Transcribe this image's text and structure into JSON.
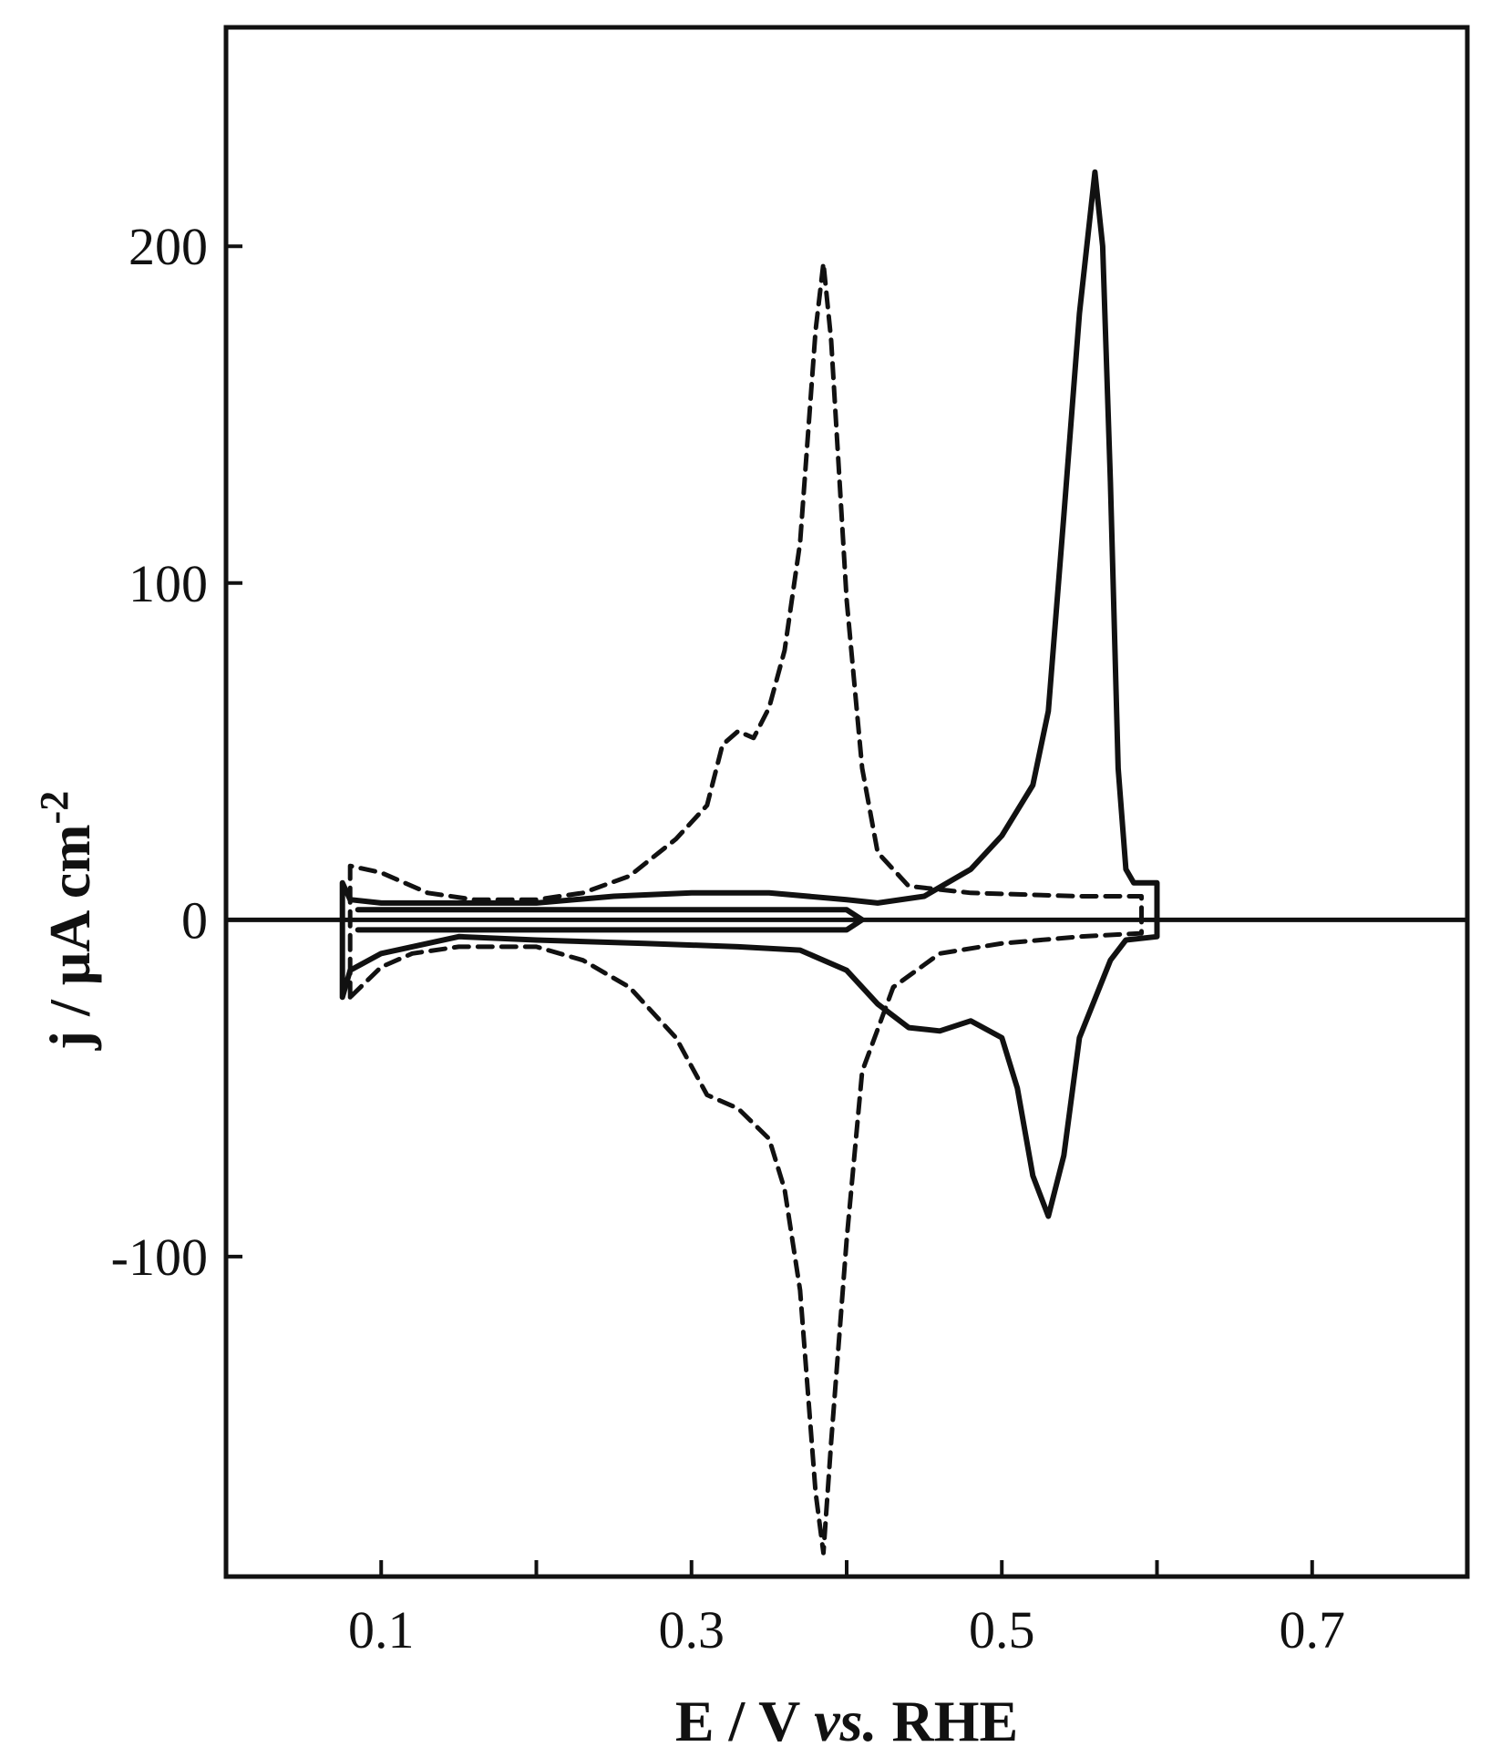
{
  "chart_data": {
    "type": "line",
    "xlabel": {
      "prefix": "E / V ",
      "italic": "vs.",
      "suffix": " RHE"
    },
    "ylabel": {
      "base": "j / μA cm",
      "sup": "-2"
    },
    "xlim": [
      0.0,
      0.8
    ],
    "ylim": [
      -195,
      265
    ],
    "x_ticks": [
      0.1,
      0.2,
      0.3,
      0.4,
      0.5,
      0.6,
      0.7
    ],
    "x_tick_labels": [
      {
        "value": 0.1,
        "label": "0.1"
      },
      {
        "value": 0.3,
        "label": "0.3"
      },
      {
        "value": 0.5,
        "label": "0.5"
      },
      {
        "value": 0.7,
        "label": "0.7"
      }
    ],
    "y_ticks": [
      -100,
      0,
      100,
      200
    ],
    "y_tick_labels": [
      {
        "value": 200,
        "label": "200"
      },
      {
        "value": 100,
        "label": "100"
      },
      {
        "value": 0,
        "label": "0"
      },
      {
        "value": -100,
        "label": "-100"
      }
    ],
    "zero_line": true,
    "grid": false,
    "legend": "none",
    "series": [
      {
        "style": "dashed",
        "color": "#111111",
        "points": [
          [
            0.08,
            -23
          ],
          [
            0.08,
            16
          ],
          [
            0.1,
            14
          ],
          [
            0.13,
            8
          ],
          [
            0.16,
            6
          ],
          [
            0.2,
            6
          ],
          [
            0.23,
            8
          ],
          [
            0.26,
            13
          ],
          [
            0.29,
            24
          ],
          [
            0.31,
            34
          ],
          [
            0.32,
            52
          ],
          [
            0.33,
            56
          ],
          [
            0.34,
            54
          ],
          [
            0.35,
            63
          ],
          [
            0.36,
            80
          ],
          [
            0.37,
            112
          ],
          [
            0.38,
            175
          ],
          [
            0.385,
            195
          ],
          [
            0.39,
            172
          ],
          [
            0.4,
            95
          ],
          [
            0.41,
            45
          ],
          [
            0.42,
            20
          ],
          [
            0.44,
            10
          ],
          [
            0.48,
            8
          ],
          [
            0.55,
            7
          ],
          [
            0.59,
            7
          ],
          [
            0.59,
            -4
          ],
          [
            0.55,
            -5
          ],
          [
            0.5,
            -7
          ],
          [
            0.46,
            -10
          ],
          [
            0.43,
            -20
          ],
          [
            0.41,
            -45
          ],
          [
            0.4,
            -95
          ],
          [
            0.39,
            -155
          ],
          [
            0.385,
            -188
          ],
          [
            0.38,
            -170
          ],
          [
            0.37,
            -110
          ],
          [
            0.36,
            -80
          ],
          [
            0.35,
            -65
          ],
          [
            0.33,
            -56
          ],
          [
            0.32,
            -54
          ],
          [
            0.31,
            -52
          ],
          [
            0.29,
            -35
          ],
          [
            0.26,
            -20
          ],
          [
            0.23,
            -12
          ],
          [
            0.2,
            -8
          ],
          [
            0.15,
            -8
          ],
          [
            0.12,
            -10
          ],
          [
            0.1,
            -14
          ],
          [
            0.08,
            -23
          ]
        ]
      },
      {
        "style": "solid",
        "color": "#111111",
        "points": [
          [
            0.075,
            -23
          ],
          [
            0.075,
            11
          ],
          [
            0.08,
            6
          ],
          [
            0.1,
            5
          ],
          [
            0.15,
            5
          ],
          [
            0.2,
            5
          ],
          [
            0.25,
            7
          ],
          [
            0.3,
            8
          ],
          [
            0.35,
            8
          ],
          [
            0.4,
            6
          ],
          [
            0.42,
            5
          ],
          [
            0.45,
            7
          ],
          [
            0.48,
            15
          ],
          [
            0.5,
            25
          ],
          [
            0.52,
            40
          ],
          [
            0.53,
            62
          ],
          [
            0.54,
            120
          ],
          [
            0.55,
            180
          ],
          [
            0.56,
            222
          ],
          [
            0.565,
            200
          ],
          [
            0.57,
            130
          ],
          [
            0.575,
            45
          ],
          [
            0.58,
            15
          ],
          [
            0.585,
            11
          ],
          [
            0.6,
            11
          ],
          [
            0.6,
            -5
          ],
          [
            0.58,
            -6
          ],
          [
            0.57,
            -12
          ],
          [
            0.55,
            -35
          ],
          [
            0.54,
            -70
          ],
          [
            0.53,
            -88
          ],
          [
            0.52,
            -76
          ],
          [
            0.51,
            -50
          ],
          [
            0.5,
            -35
          ],
          [
            0.48,
            -30
          ],
          [
            0.46,
            -33
          ],
          [
            0.44,
            -32
          ],
          [
            0.42,
            -25
          ],
          [
            0.4,
            -15
          ],
          [
            0.37,
            -9
          ],
          [
            0.33,
            -8
          ],
          [
            0.27,
            -7
          ],
          [
            0.2,
            -6
          ],
          [
            0.15,
            -5
          ],
          [
            0.1,
            -10
          ],
          [
            0.08,
            -15
          ],
          [
            0.075,
            -23
          ]
        ]
      },
      {
        "style": "solid",
        "color": "#111111",
        "points": [
          [
            0.085,
            3
          ],
          [
            0.2,
            3
          ],
          [
            0.3,
            3
          ],
          [
            0.4,
            3
          ],
          [
            0.41,
            0
          ],
          [
            0.4,
            -3
          ],
          [
            0.3,
            -3
          ],
          [
            0.2,
            -3
          ],
          [
            0.085,
            -3
          ]
        ]
      }
    ]
  }
}
